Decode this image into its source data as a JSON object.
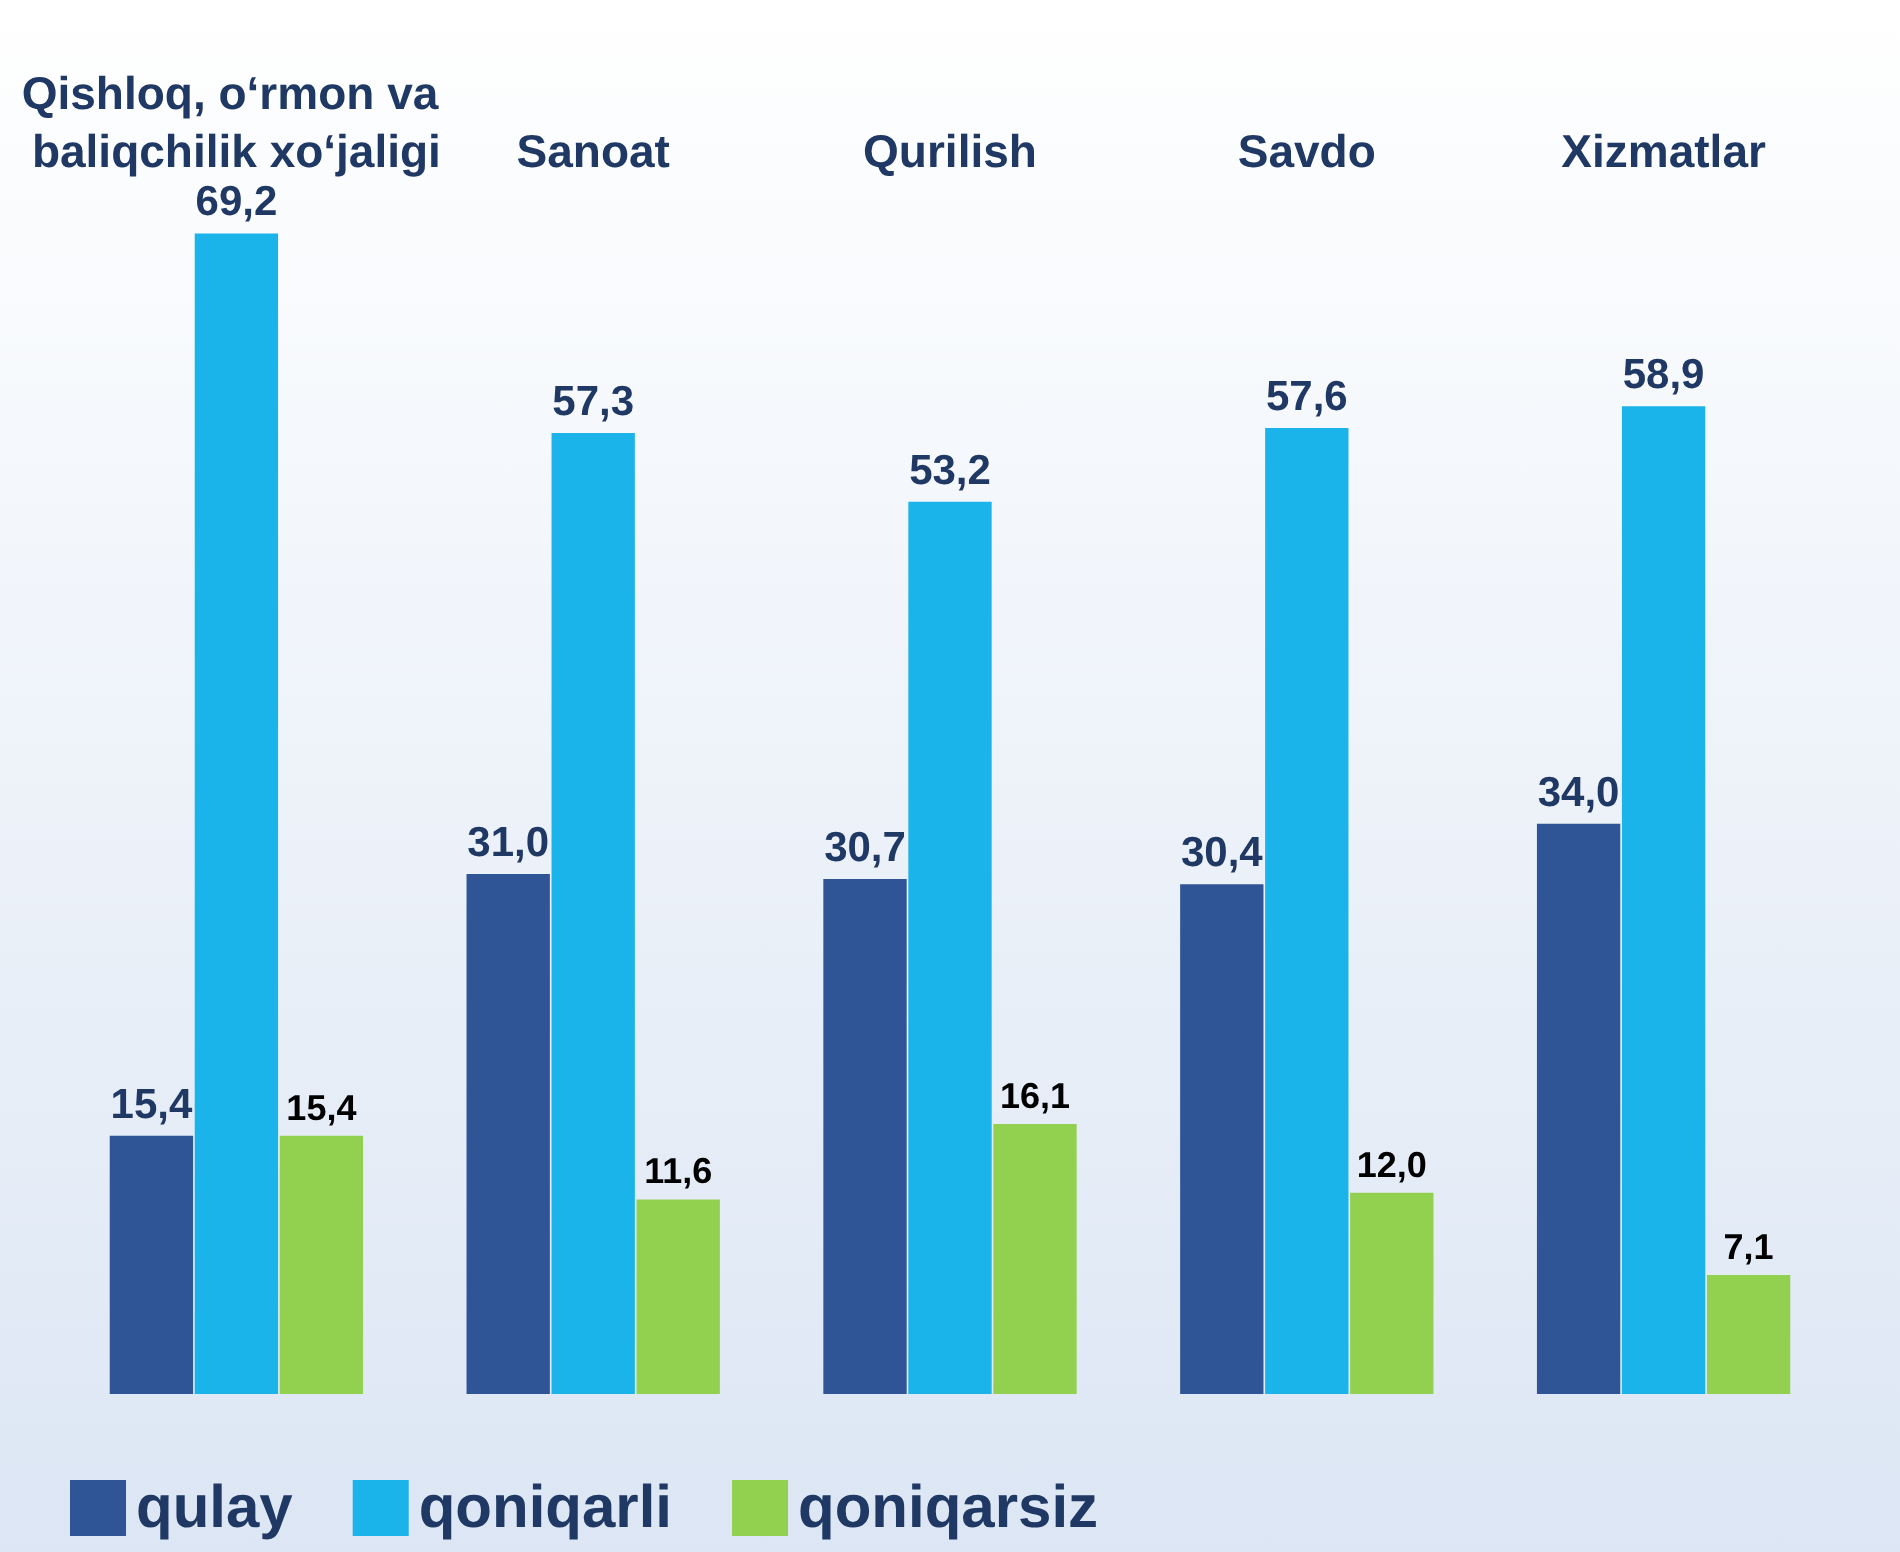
{
  "chart_data": {
    "type": "bar",
    "categories": [
      "Qishloq, o‘rmon va baliqchilik xo‘jaligi",
      "Sanoat",
      "Qurilish",
      "Savdo",
      "Xizmatlar"
    ],
    "series": [
      {
        "name": "qulay",
        "color": "#2f5597",
        "values": [
          15.4,
          31.0,
          30.7,
          30.4,
          34.0
        ],
        "value_labels": [
          "15,4",
          "31,0",
          "30,7",
          "30,4",
          "34,0"
        ]
      },
      {
        "name": "qoniqarli",
        "color": "#1ab4ea",
        "values": [
          69.2,
          57.3,
          53.2,
          57.6,
          58.9
        ],
        "value_labels": [
          "69,2",
          "57,3",
          "53,2",
          "57,6",
          "58,9"
        ]
      },
      {
        "name": "qoniqarsiz",
        "color": "#92d050",
        "values": [
          15.4,
          11.6,
          16.1,
          12.0,
          7.1
        ],
        "value_labels": [
          "15,4",
          "11,6",
          "16,1",
          "12,0",
          "7,1"
        ]
      }
    ],
    "legend": "bottom left"
  }
}
